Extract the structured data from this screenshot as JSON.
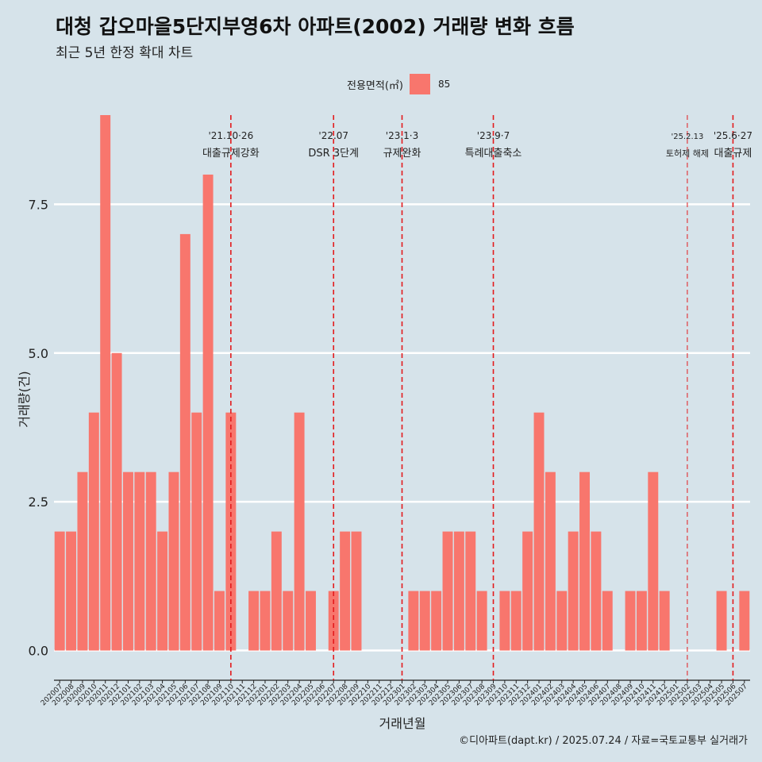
{
  "title": "대청 갑오마을5단지부영6차 아파트(2002) 거래량 변화 흐름",
  "subtitle": "최근 5년 한정 확대 차트",
  "legend": {
    "title": "전용면적(㎡)",
    "label": "85",
    "color": "#f8766d"
  },
  "caption": "©디아파트(dapt.kr) / 2025.07.24 / 자료=국토교통부 실거래가",
  "chart_data": {
    "type": "bar",
    "xlabel": "거래년월",
    "ylabel": "거래량(건)",
    "ylim": [
      -0.5,
      9.0
    ],
    "yticks": [
      0.0,
      2.5,
      5.0,
      7.5
    ],
    "ytick_labels": [
      "0.0",
      "2.5",
      "5.0",
      "7.5"
    ],
    "grid": "horizontal",
    "legend_position": "top",
    "bar_color": "#f8766d",
    "categories": [
      "202007",
      "202008",
      "202009",
      "202010",
      "202011",
      "202012",
      "202101",
      "202102",
      "202103",
      "202104",
      "202105",
      "202106",
      "202107",
      "202108",
      "202109",
      "202110",
      "202111",
      "202112",
      "202201",
      "202202",
      "202203",
      "202204",
      "202205",
      "202206",
      "202207",
      "202208",
      "202209",
      "202210",
      "202211",
      "202212",
      "202301",
      "202302",
      "202303",
      "202304",
      "202305",
      "202306",
      "202307",
      "202308",
      "202309",
      "202310",
      "202311",
      "202312",
      "202401",
      "202402",
      "202403",
      "202404",
      "202405",
      "202406",
      "202407",
      "202408",
      "202409",
      "202410",
      "202411",
      "202412",
      "202501",
      "202502",
      "202503",
      "202504",
      "202505",
      "202506",
      "202507"
    ],
    "series": [
      {
        "values": [
          2,
          2,
          3,
          4,
          9,
          5,
          3,
          3,
          3,
          2,
          3,
          7,
          4,
          8,
          1,
          4,
          0,
          1,
          1,
          2,
          1,
          4,
          1,
          0,
          1,
          2,
          2,
          0,
          0,
          0,
          0,
          1,
          1,
          1,
          2,
          2,
          2,
          1,
          0,
          1,
          1,
          2,
          4,
          3,
          1,
          2,
          3,
          2,
          1,
          0,
          1,
          1,
          3,
          1,
          0,
          0,
          0,
          0,
          1,
          0,
          1
        ]
      }
    ],
    "annotations": [
      {
        "x": "202110",
        "line1": "'21.10·26",
        "line2": "대출규제강화",
        "size": "normal"
      },
      {
        "x": "202207",
        "line1": "'22.07",
        "line2": "DSR 3단계",
        "size": "normal"
      },
      {
        "x": "202301",
        "line1": "'23.1·3",
        "line2": "규제완화",
        "size": "normal"
      },
      {
        "x": "202309",
        "line1": "'23.9·7",
        "line2": "특례대출축소",
        "size": "normal"
      },
      {
        "x": "202502",
        "line1": "'25.2.13",
        "line2": "토허제 해제",
        "size": "small"
      },
      {
        "x": "202506",
        "line1": "'25.6·27",
        "line2": "대출규제",
        "size": "normal"
      }
    ]
  }
}
